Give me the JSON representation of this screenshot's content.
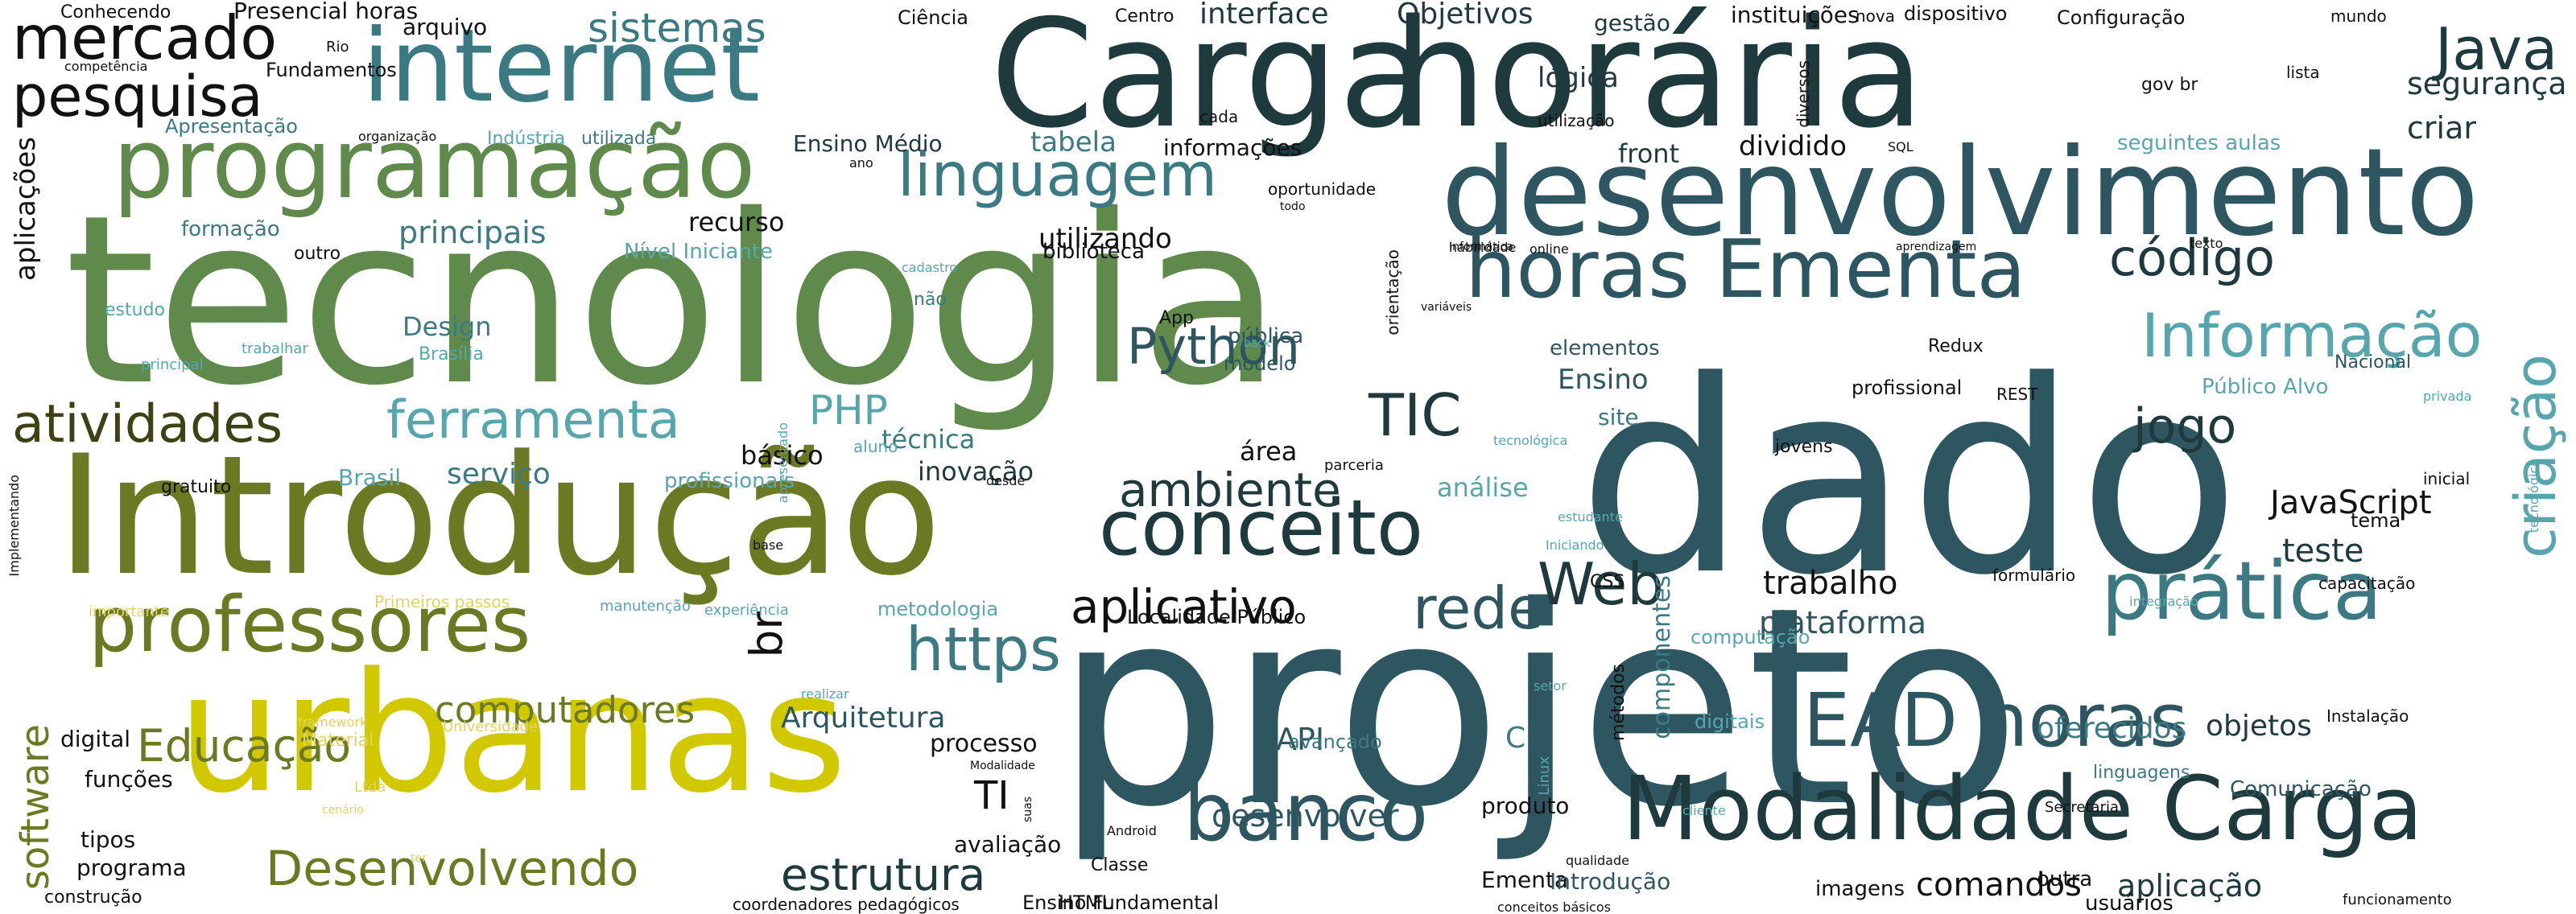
{
  "colors": {
    "dark_teal": "#1f3a3d",
    "slate_teal": "#2e5660",
    "mid_teal": "#3b7a82",
    "light_teal": "#58a6ad",
    "green": "#5f8a4b",
    "olive": "#6b7a22",
    "dark_olive": "#3e4213",
    "yellow": "#d2c800",
    "pale_yellow": "#e2d35f",
    "black": "#111111"
  },
  "words": [
    {
      "text": "dado",
      "c": "slate_teal"
    },
    {
      "text": "projeto",
      "c": "slate_teal"
    },
    {
      "text": "tecnologia",
      "c": "green"
    },
    {
      "text": "Carga",
      "c": "dark_teal"
    },
    {
      "text": "horária",
      "c": "dark_teal"
    },
    {
      "text": "Introdução",
      "c": "olive"
    },
    {
      "text": "urbanas",
      "c": "yellow"
    },
    {
      "text": "desenvolvimento",
      "c": "slate_teal"
    },
    {
      "text": "internet",
      "c": "mid_teal"
    },
    {
      "text": "programação",
      "c": "green"
    },
    {
      "text": "Modalidade Carga",
      "c": "dark_teal"
    },
    {
      "text": "horas Ementa",
      "c": "slate_teal"
    },
    {
      "text": "conceito",
      "c": "dark_teal"
    },
    {
      "text": "professores",
      "c": "olive"
    },
    {
      "text": "prática",
      "c": "mid_teal"
    },
    {
      "text": "EAD horas",
      "c": "slate_teal"
    },
    {
      "text": "banco",
      "c": "slate_teal"
    },
    {
      "text": "linguagem",
      "c": "mid_teal"
    },
    {
      "text": "mercado",
      "c": "black"
    },
    {
      "text": "pesquisa",
      "c": "black"
    },
    {
      "text": "atividades",
      "c": "dark_olive"
    },
    {
      "text": "ferramenta",
      "c": "light_teal"
    },
    {
      "text": "Informação",
      "c": "light_teal"
    },
    {
      "text": "Python",
      "c": "slate_teal"
    },
    {
      "text": "Web",
      "c": "dark_teal"
    },
    {
      "text": "TIC",
      "c": "dark_teal"
    },
    {
      "text": "rede",
      "c": "slate_teal"
    },
    {
      "text": "https",
      "c": "mid_teal"
    },
    {
      "text": "aplicativo",
      "c": "black"
    },
    {
      "text": "ambiente",
      "c": "dark_teal"
    },
    {
      "text": "Java",
      "c": "dark_teal"
    },
    {
      "text": "código",
      "c": "dark_teal"
    },
    {
      "text": "jogo",
      "c": "dark_teal"
    },
    {
      "text": "criação",
      "c": "light_teal"
    },
    {
      "text": "Desenvolvendo",
      "c": "olive"
    },
    {
      "text": "estrutura",
      "c": "dark_teal"
    },
    {
      "text": "Educação",
      "c": "olive"
    },
    {
      "text": "software",
      "c": "olive"
    },
    {
      "text": "computadores",
      "c": "olive"
    },
    {
      "text": "sistemas",
      "c": "mid_teal"
    },
    {
      "text": "br",
      "c": "black"
    },
    {
      "text": "PHP",
      "c": "light_teal"
    },
    {
      "text": "JavaScript",
      "c": "black"
    },
    {
      "text": "teste",
      "c": "dark_teal"
    },
    {
      "text": "plataforma",
      "c": "slate_teal"
    },
    {
      "text": "trabalho",
      "c": "black"
    },
    {
      "text": "Arquitetura",
      "c": "slate_teal"
    },
    {
      "text": "desenvolver",
      "c": "slate_teal"
    },
    {
      "text": "comandos",
      "c": "black"
    },
    {
      "text": "aplicação",
      "c": "dark_teal"
    },
    {
      "text": "principais",
      "c": "mid_teal"
    },
    {
      "text": "serviço",
      "c": "mid_teal"
    },
    {
      "text": "segurança",
      "c": "dark_teal"
    },
    {
      "text": "criar",
      "c": "dark_teal"
    },
    {
      "text": "objetos",
      "c": "dark_teal"
    },
    {
      "text": "oferecidos",
      "c": "mid_teal"
    },
    {
      "text": "TI",
      "c": "black"
    },
    {
      "text": "API",
      "c": "slate_teal"
    },
    {
      "text": "Ensino",
      "c": "slate_teal"
    },
    {
      "text": "área",
      "c": "black"
    },
    {
      "text": "técnica",
      "c": "mid_teal"
    },
    {
      "text": "básico",
      "c": "black"
    },
    {
      "text": "inovação",
      "c": "dark_teal"
    },
    {
      "text": "análise",
      "c": "light_teal"
    },
    {
      "text": "interface",
      "c": "dark_teal"
    },
    {
      "text": "Objetivos",
      "c": "dark_teal"
    },
    {
      "text": "lógica",
      "c": "dark_teal"
    },
    {
      "text": "dividido",
      "c": "black"
    },
    {
      "text": "front",
      "c": "dark_teal"
    },
    {
      "text": "utilizando",
      "c": "black"
    },
    {
      "text": "tabela",
      "c": "mid_teal"
    },
    {
      "text": "informações",
      "c": "black"
    },
    {
      "text": "recurso",
      "c": "black"
    },
    {
      "text": "componentes",
      "c": "mid_teal"
    },
    {
      "text": "processo",
      "c": "black"
    },
    {
      "text": "metodologia",
      "c": "light_teal"
    },
    {
      "text": "funções",
      "c": "black"
    },
    {
      "text": "programa",
      "c": "black"
    },
    {
      "text": "digital",
      "c": "black"
    },
    {
      "text": "tipos",
      "c": "black"
    },
    {
      "text": "construção",
      "c": "black"
    },
    {
      "text": "Ensino Médio",
      "c": "dark_teal"
    },
    {
      "text": "Ensino Fundamental",
      "c": "black"
    },
    {
      "text": "Ementa",
      "c": "black"
    },
    {
      "text": "Introdução",
      "c": "slate_teal"
    },
    {
      "text": "imagens",
      "c": "black"
    },
    {
      "text": "outra",
      "c": "black"
    },
    {
      "text": "usuários",
      "c": "black"
    },
    {
      "text": "Comunicação",
      "c": "slate_teal"
    },
    {
      "text": "linguagens",
      "c": "mid_teal"
    },
    {
      "text": "Instalação",
      "c": "black"
    },
    {
      "text": "produto",
      "c": "black"
    },
    {
      "text": "avaliação",
      "c": "black"
    },
    {
      "text": "Classe",
      "c": "black"
    },
    {
      "text": "HTML",
      "c": "black"
    },
    {
      "text": "coordenadores pedagógicos",
      "c": "black"
    },
    {
      "text": "Design",
      "c": "mid_teal"
    },
    {
      "text": "Brasil",
      "c": "light_teal"
    },
    {
      "text": "gratuito",
      "c": "black"
    },
    {
      "text": "profissionais",
      "c": "light_teal"
    },
    {
      "text": "Localidade Público",
      "c": "black"
    },
    {
      "text": "profissional",
      "c": "black"
    },
    {
      "text": "Público Alvo",
      "c": "light_teal"
    },
    {
      "text": "site",
      "c": "mid_teal"
    },
    {
      "text": "elementos",
      "c": "slate_teal"
    },
    {
      "text": "modelo",
      "c": "slate_teal"
    },
    {
      "text": "jovens",
      "c": "black"
    },
    {
      "text": "tema",
      "c": "black"
    },
    {
      "text": "formulário",
      "c": "black"
    },
    {
      "text": "CSS",
      "c": "black"
    },
    {
      "text": "computação",
      "c": "light_teal"
    },
    {
      "text": "Nacional",
      "c": "slate_teal"
    },
    {
      "text": "seguintes aulas",
      "c": "light_teal"
    },
    {
      "text": "habilidade",
      "c": "black"
    },
    {
      "text": "online",
      "c": "black"
    },
    {
      "text": "aprendizagem",
      "c": "black"
    },
    {
      "text": "texto",
      "c": "black"
    },
    {
      "text": "Redux",
      "c": "black"
    },
    {
      "text": "REST",
      "c": "black"
    },
    {
      "text": "gestão",
      "c": "dark_teal"
    },
    {
      "text": "instituições",
      "c": "black"
    },
    {
      "text": "nova",
      "c": "black"
    },
    {
      "text": "dispositivo",
      "c": "black"
    },
    {
      "text": "Configuração",
      "c": "black"
    },
    {
      "text": "mundo",
      "c": "black"
    },
    {
      "text": "lista",
      "c": "black"
    },
    {
      "text": "gov br",
      "c": "black"
    },
    {
      "text": "diversos",
      "c": "black"
    },
    {
      "text": "utilização",
      "c": "black"
    },
    {
      "text": "SQL",
      "c": "black"
    },
    {
      "text": "oportunidade",
      "c": "black"
    },
    {
      "text": "todo",
      "c": "black"
    },
    {
      "text": "Informática",
      "c": "black"
    },
    {
      "text": "orientação",
      "c": "black"
    },
    {
      "text": "biblioteca",
      "c": "black"
    },
    {
      "text": "cadastro",
      "c": "light_teal"
    },
    {
      "text": "não",
      "c": "mid_teal"
    },
    {
      "text": "App",
      "c": "black"
    },
    {
      "text": "pública",
      "c": "slate_teal"
    },
    {
      "text": "back",
      "c": "light_teal"
    },
    {
      "text": "variáveis",
      "c": "black"
    },
    {
      "text": "Apresentação",
      "c": "mid_teal"
    },
    {
      "text": "organização",
      "c": "black"
    },
    {
      "text": "Indústria",
      "c": "light_teal"
    },
    {
      "text": "utilizada",
      "c": "mid_teal"
    },
    {
      "text": "ano",
      "c": "black"
    },
    {
      "text": "cada",
      "c": "black"
    },
    {
      "text": "Centro",
      "c": "black"
    },
    {
      "text": "Ciência",
      "c": "black"
    },
    {
      "text": "arquivo",
      "c": "black"
    },
    {
      "text": "Presencial horas",
      "c": "black"
    },
    {
      "text": "Rio",
      "c": "black"
    },
    {
      "text": "Fundamentos",
      "c": "black"
    },
    {
      "text": "Conhecendo",
      "c": "black"
    },
    {
      "text": "competência",
      "c": "black"
    },
    {
      "text": "aplicações",
      "c": "black"
    },
    {
      "text": "formação",
      "c": "mid_teal"
    },
    {
      "text": "outro",
      "c": "black"
    },
    {
      "text": "Nível Iniciante",
      "c": "light_teal"
    },
    {
      "text": "estudo",
      "c": "light_teal"
    },
    {
      "text": "trabalhar",
      "c": "light_teal"
    },
    {
      "text": "principal",
      "c": "light_teal"
    },
    {
      "text": "Brasília",
      "c": "light_teal"
    },
    {
      "text": "Implementando",
      "c": "black"
    },
    {
      "text": "importante",
      "c": "pale_yellow"
    },
    {
      "text": "Primeiros passos",
      "c": "pale_yellow"
    },
    {
      "text": "manutenção",
      "c": "light_teal"
    },
    {
      "text": "experiência",
      "c": "light_teal"
    },
    {
      "text": "Universidade",
      "c": "pale_yellow"
    },
    {
      "text": "Material",
      "c": "pale_yellow"
    },
    {
      "text": "framework",
      "c": "pale_yellow"
    },
    {
      "text": "Ltda",
      "c": "pale_yellow"
    },
    {
      "text": "cenário",
      "c": "pale_yellow"
    },
    {
      "text": "ter",
      "c": "pale_yellow"
    },
    {
      "text": "apresentado",
      "c": "light_teal"
    },
    {
      "text": "base",
      "c": "black"
    },
    {
      "text": "aluno",
      "c": "light_teal"
    },
    {
      "text": "desde",
      "c": "black"
    },
    {
      "text": "parceria",
      "c": "black"
    },
    {
      "text": "tecnológica",
      "c": "light_teal"
    },
    {
      "text": "estudante",
      "c": "light_teal"
    },
    {
      "text": "Iniciando",
      "c": "light_teal"
    },
    {
      "text": "setor",
      "c": "light_teal"
    },
    {
      "text": "Linux",
      "c": "light_teal"
    },
    {
      "text": "digitais",
      "c": "light_teal"
    },
    {
      "text": "métodos",
      "c": "black"
    },
    {
      "text": "cliente",
      "c": "light_teal"
    },
    {
      "text": "Secretaria",
      "c": "black"
    },
    {
      "text": "integração",
      "c": "light_teal"
    },
    {
      "text": "capacitação",
      "c": "black"
    },
    {
      "text": "inicial",
      "c": "black"
    },
    {
      "text": "tecnológico",
      "c": "light_teal"
    },
    {
      "text": "privada",
      "c": "light_teal"
    },
    {
      "text": "avançado",
      "c": "mid_teal"
    },
    {
      "text": "C",
      "c": "mid_teal"
    },
    {
      "text": "realizar",
      "c": "light_teal"
    },
    {
      "text": "Modalidade",
      "c": "black"
    },
    {
      "text": "suas",
      "c": "black"
    },
    {
      "text": "Android",
      "c": "black"
    },
    {
      "text": "qualidade",
      "c": "black"
    },
    {
      "text": "conceitos básicos",
      "c": "black"
    },
    {
      "text": "funcionamento",
      "c": "black"
    }
  ]
}
